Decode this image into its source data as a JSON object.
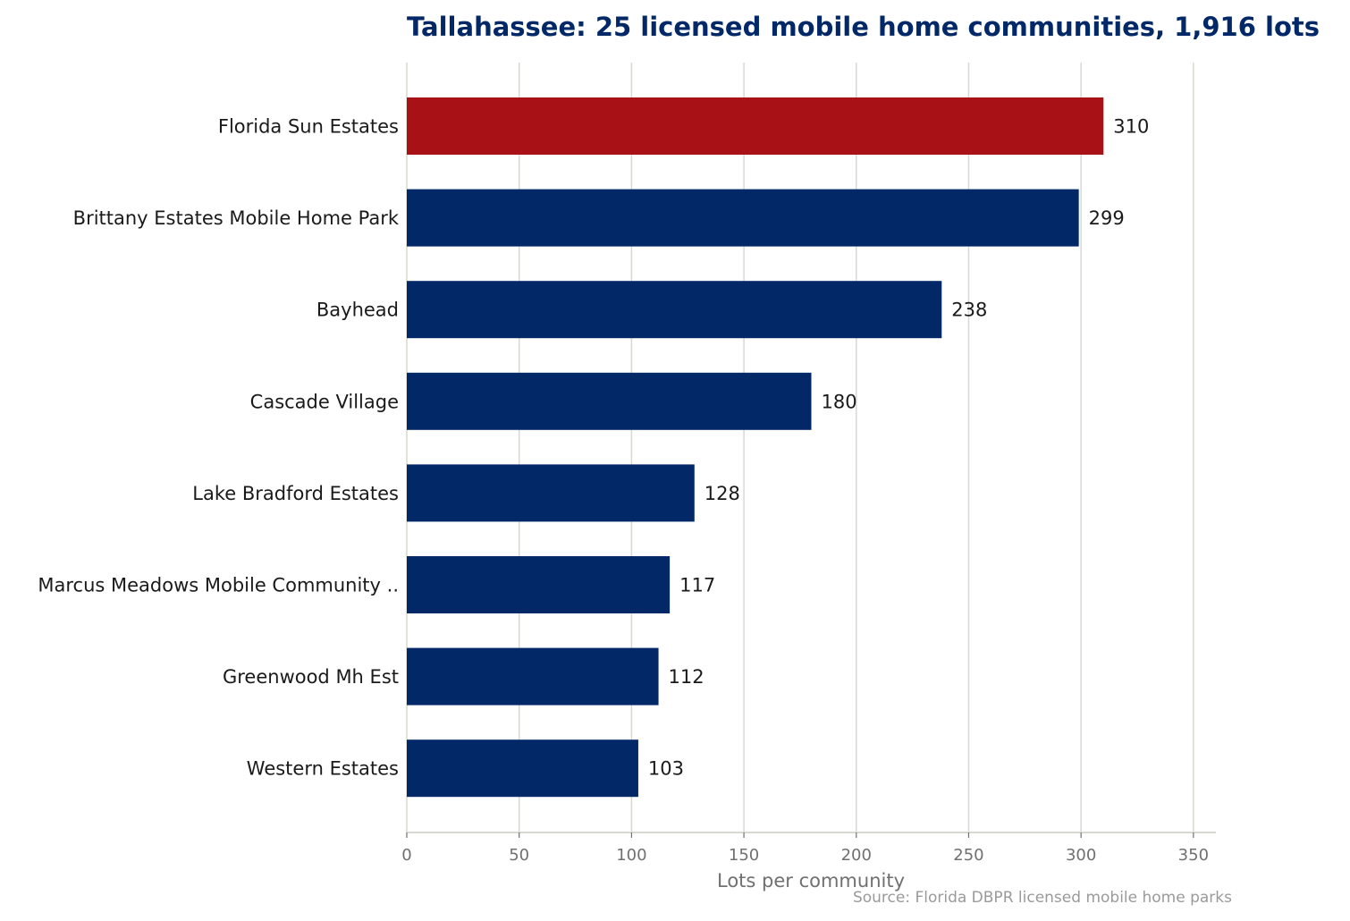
{
  "chart_data": {
    "type": "bar",
    "orientation": "horizontal",
    "title": "Tallahassee: 25 licensed mobile home communities, 1,916 lots",
    "xlabel": "Lots per community",
    "ylabel": "",
    "source": "Source: Florida DBPR licensed mobile home parks",
    "categories": [
      "Florida Sun Estates",
      "Brittany Estates Mobile Home Park",
      "Bayhead",
      "Cascade Village",
      "Lake Bradford Estates",
      "Marcus Meadows Mobile Community ..",
      "Greenwood Mh Est",
      "Western Estates"
    ],
    "values": [
      310,
      299,
      238,
      180,
      128,
      117,
      112,
      103
    ],
    "value_labels": [
      "310",
      "299",
      "238",
      "180",
      "128",
      "117",
      "112",
      "103"
    ],
    "highlight_index": 0,
    "xlim": [
      0,
      360
    ],
    "xticks": [
      0,
      50,
      100,
      150,
      200,
      250,
      300,
      350
    ],
    "xtick_labels": [
      "0",
      "50",
      "100",
      "150",
      "200",
      "250",
      "300",
      "350"
    ],
    "grid": "vertical",
    "colors": {
      "bar": "#022868",
      "highlight": "#a81116",
      "title": "#022868",
      "grid": "#d8d8d2",
      "axis": "#d8d8d2"
    }
  }
}
